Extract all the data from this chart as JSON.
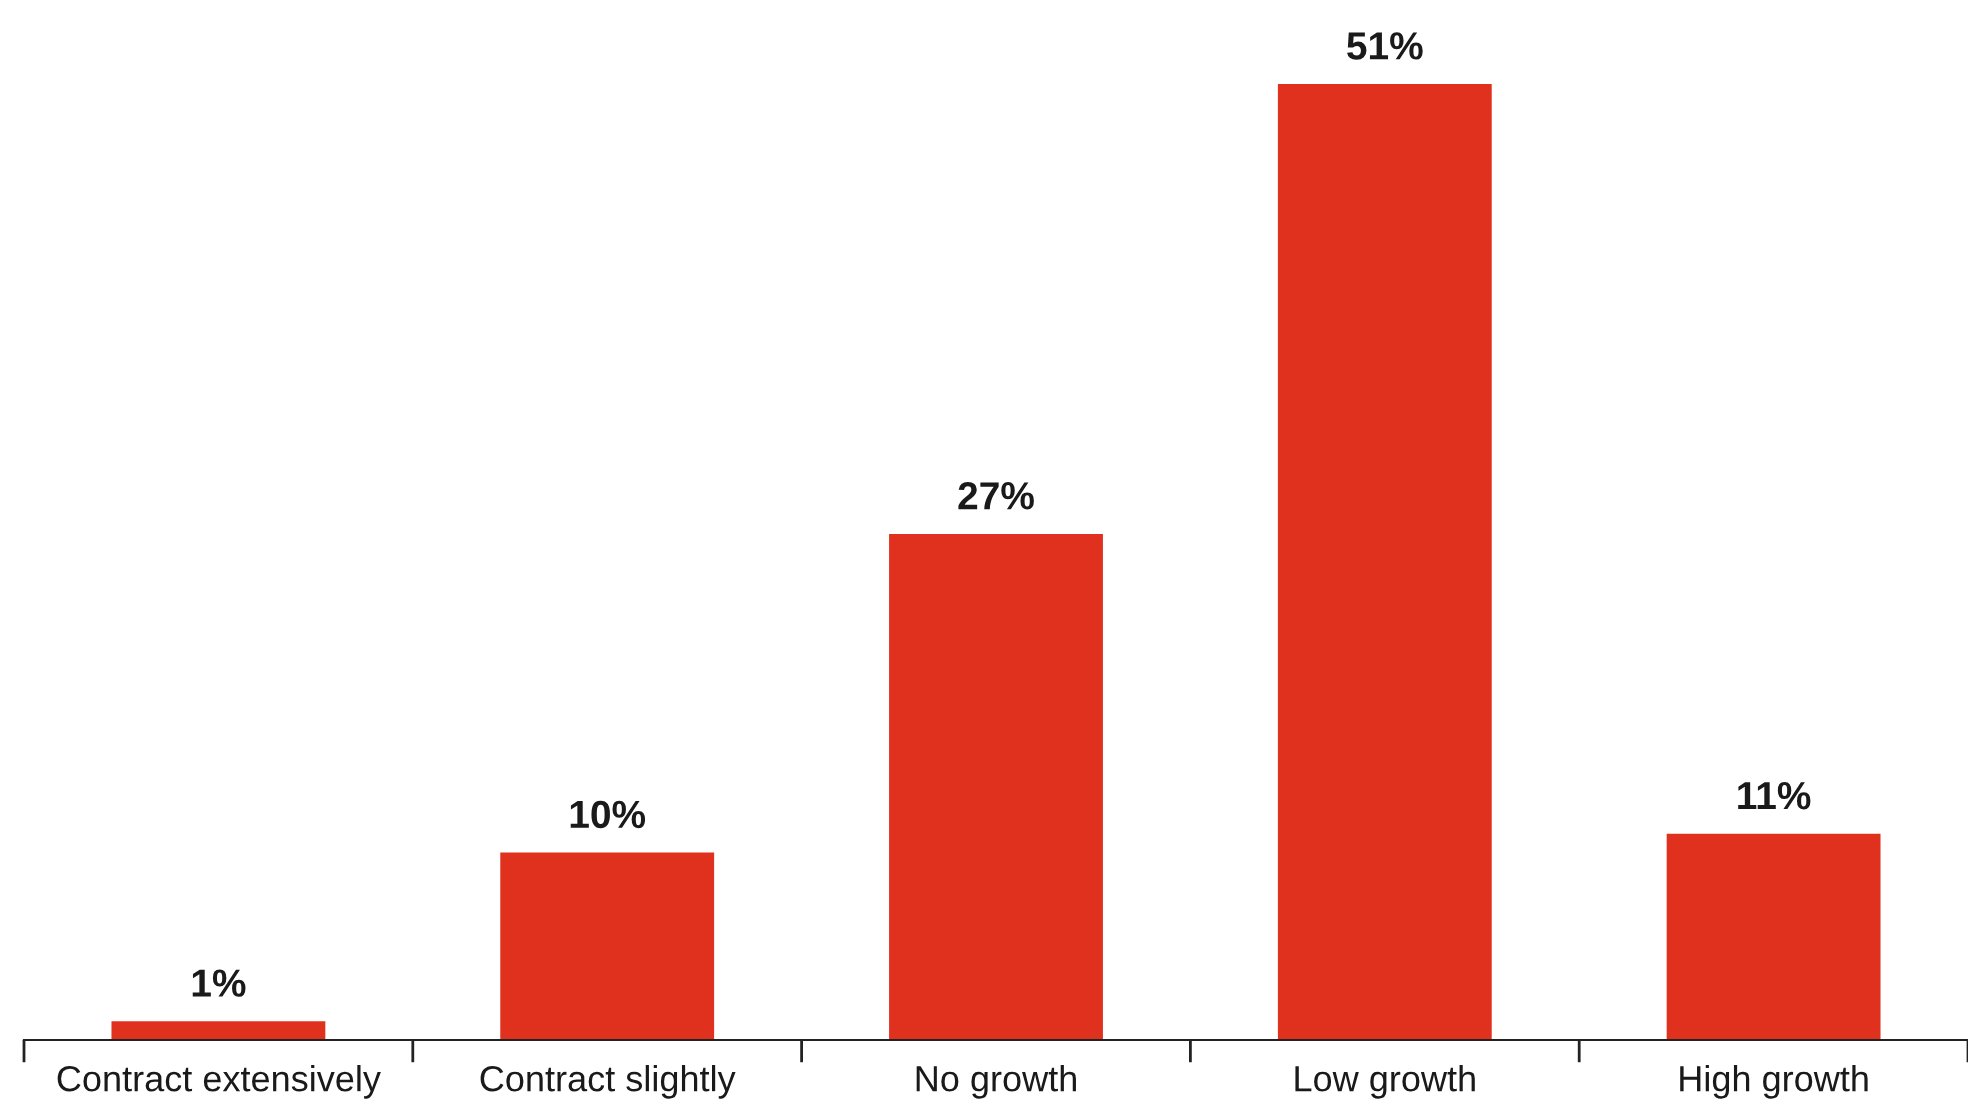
{
  "chart_data": {
    "type": "bar",
    "categories": [
      "Contract extensively",
      "Contract slightly",
      "No growth",
      "Low growth",
      "High growth"
    ],
    "values": [
      1,
      10,
      27,
      51,
      11
    ],
    "value_labels": [
      "1%",
      "10%",
      "27%",
      "51%",
      "11%"
    ],
    "color": "#e0311f",
    "grid": false,
    "legend": false
  }
}
